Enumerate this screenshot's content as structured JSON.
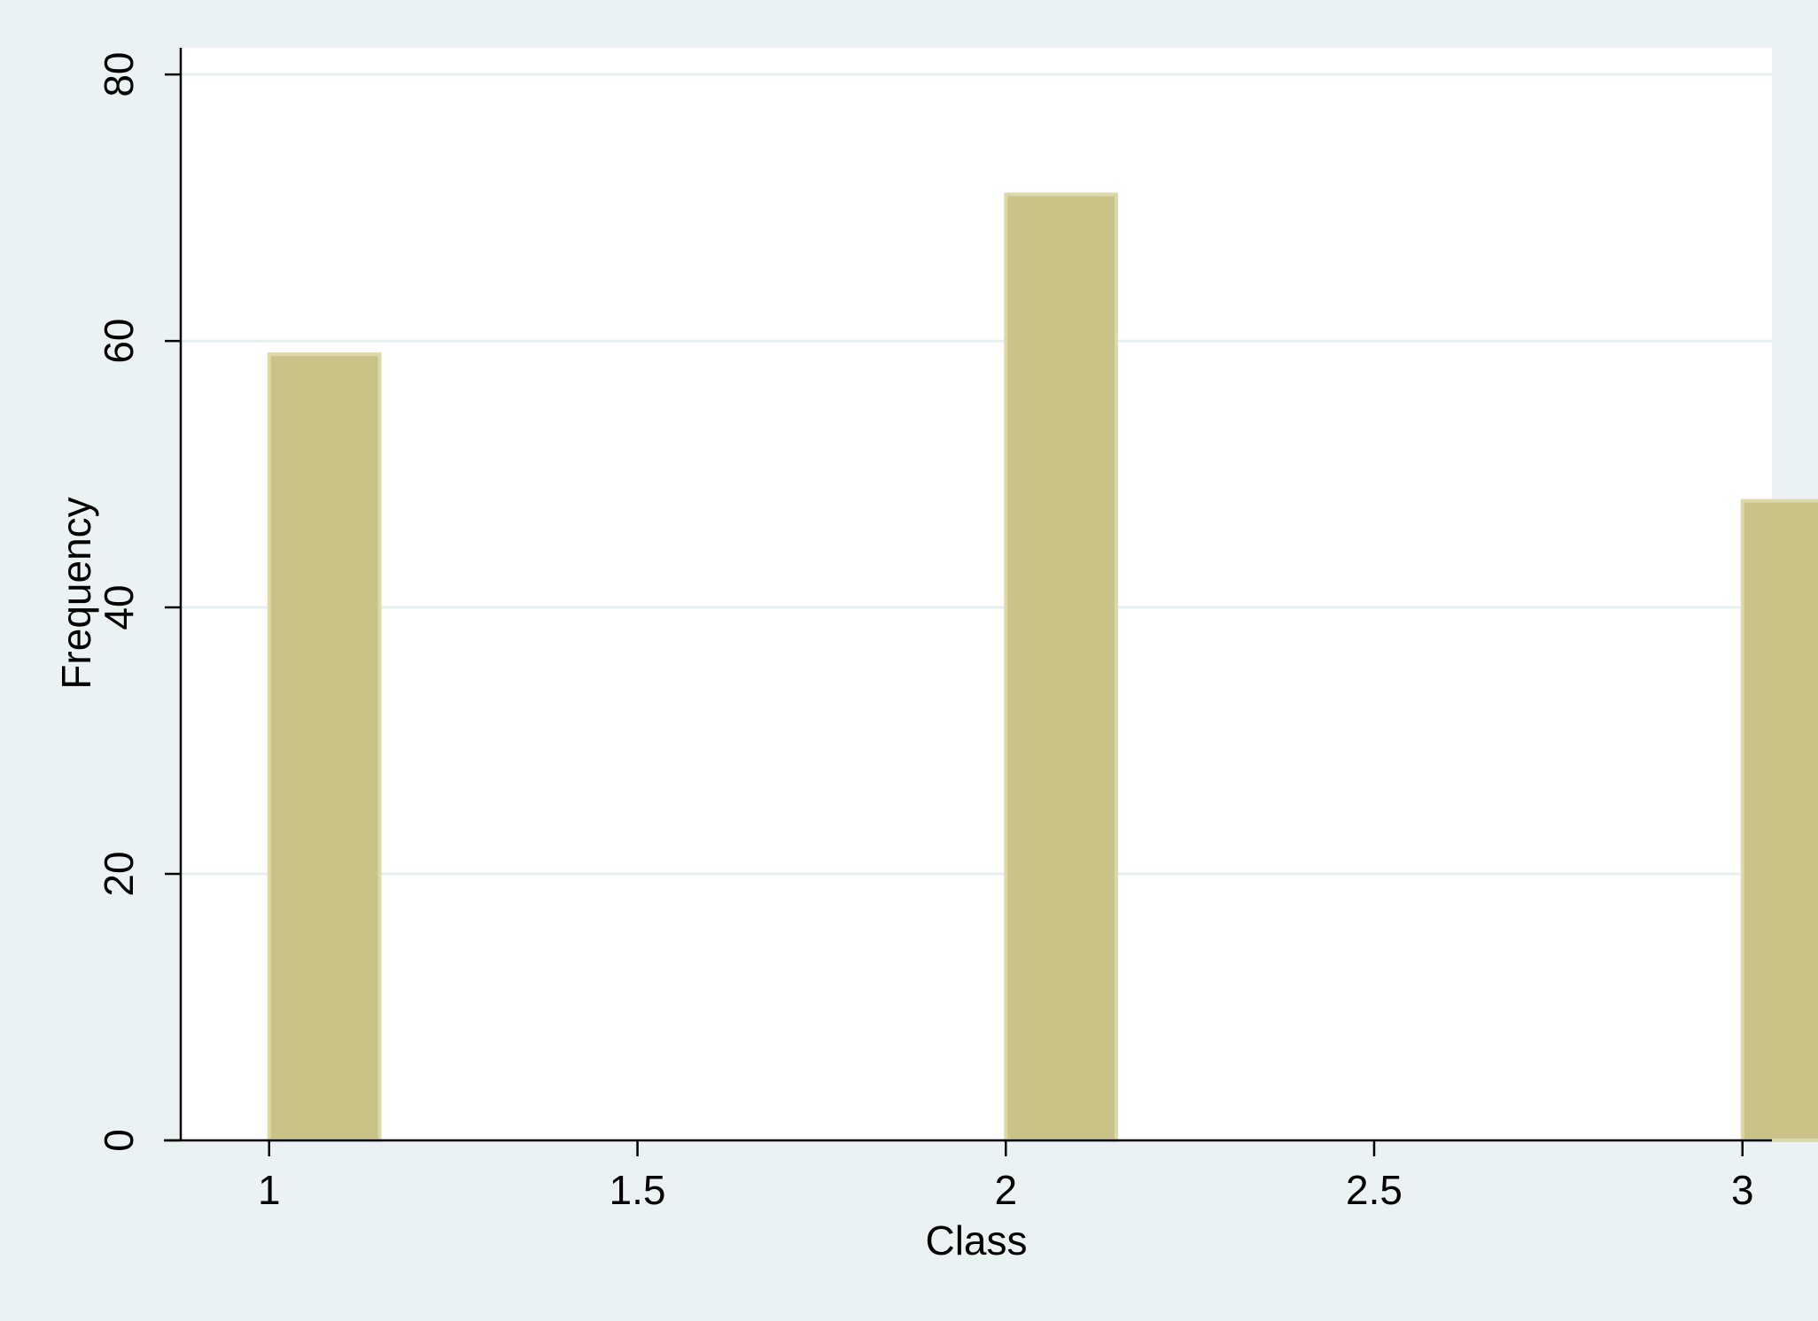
{
  "chart_data": {
    "type": "bar",
    "title": "",
    "xlabel": "Class",
    "ylabel": "Frequency",
    "x": [
      1,
      2,
      3
    ],
    "values": [
      59,
      71,
      48
    ],
    "xlim": [
      0.88,
      3.04
    ],
    "ylim": [
      0,
      82
    ],
    "xticks": [
      1,
      1.5,
      2,
      2.5,
      3
    ],
    "xtick_labels": [
      "1",
      "1.5",
      "2",
      "2.5",
      "3"
    ],
    "yticks": [
      0,
      20,
      40,
      60,
      80
    ],
    "ytick_labels": [
      "0",
      "20",
      "40",
      "60",
      "80"
    ],
    "bar_width": 0.15,
    "grid": "horizontal",
    "legend": "none"
  },
  "colors": {
    "background": "#eaf2f3",
    "plot_area": "#ffffff",
    "bar_fill": "#c9c388",
    "bar_edge": "#ddd8a8",
    "gridline": "#e6eff0",
    "axis": "#000000"
  }
}
